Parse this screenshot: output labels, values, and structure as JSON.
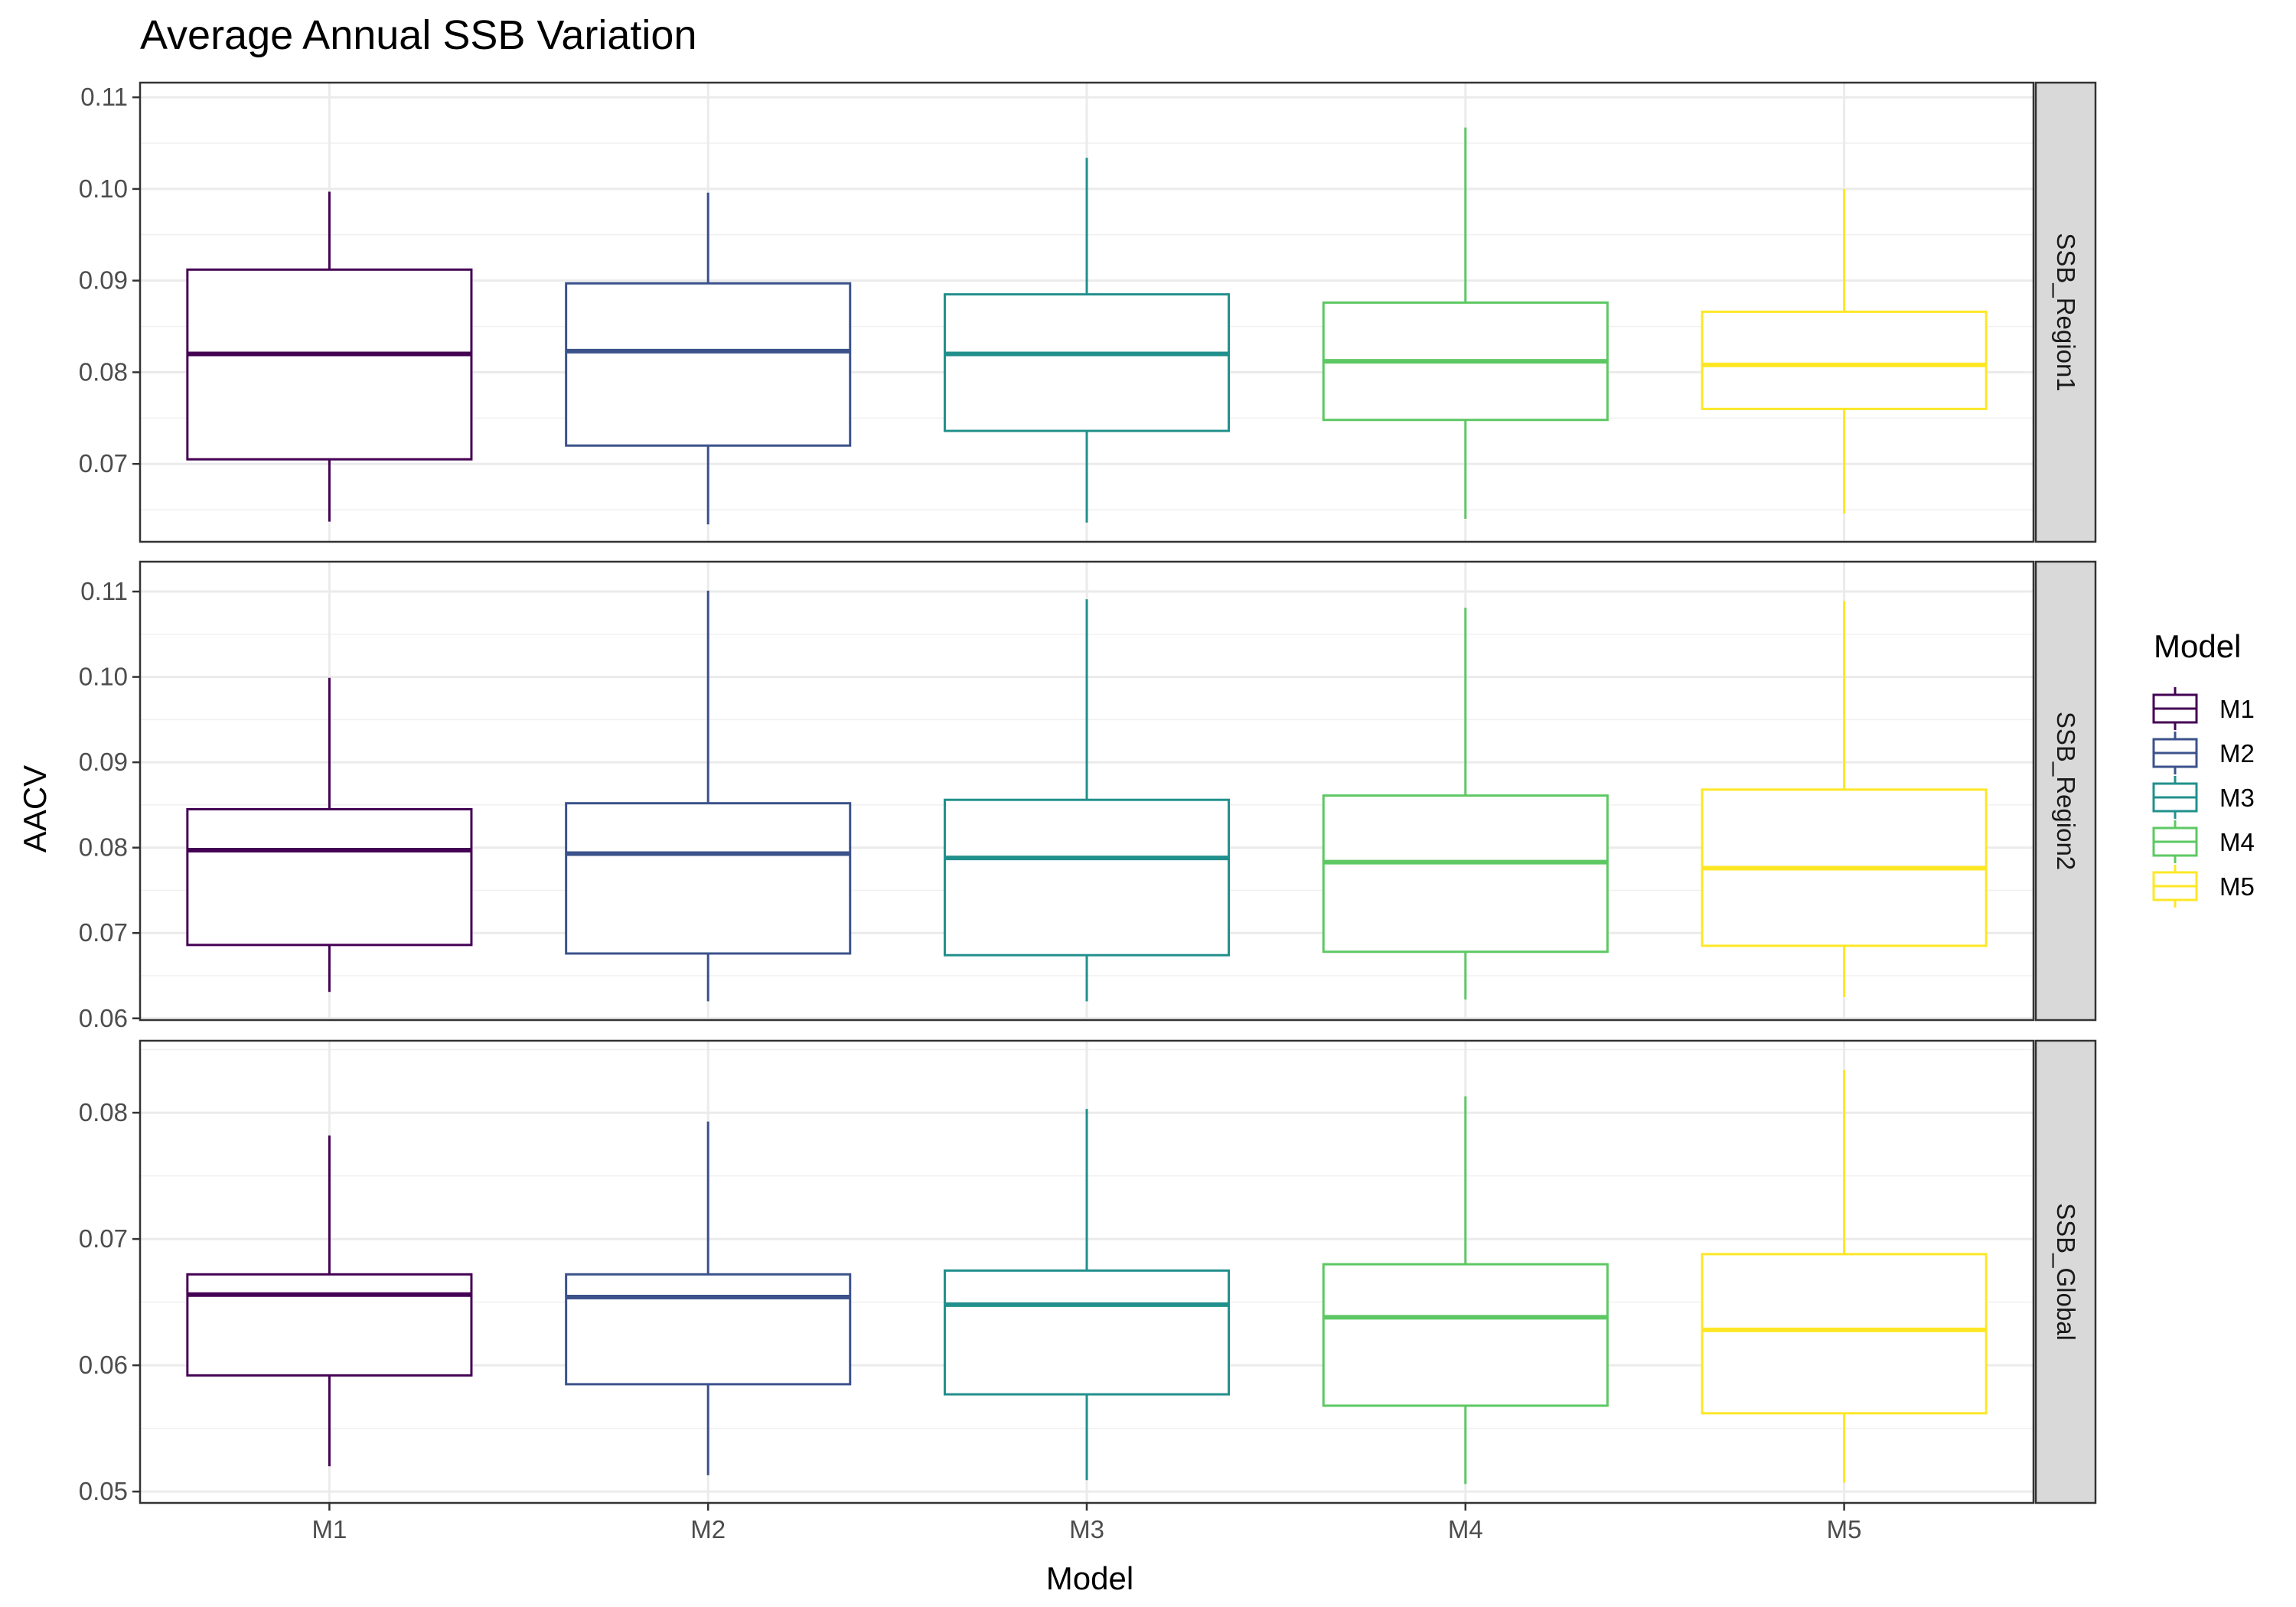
{
  "chart_data": {
    "type": "box",
    "title": "Average Annual SSB Variation",
    "xlabel": "Model",
    "ylabel": "AACV",
    "categories": [
      "M1",
      "M2",
      "M3",
      "M4",
      "M5"
    ],
    "colors": {
      "M1": "#440154",
      "M2": "#3B528B",
      "M3": "#21908C",
      "M4": "#5DC863",
      "M5": "#FDE725"
    },
    "legend": {
      "title": "Model",
      "entries": [
        "M1",
        "M2",
        "M3",
        "M4",
        "M5"
      ],
      "position": "right"
    },
    "grid": true,
    "facets": [
      {
        "label": "SSB_Region1",
        "ylim": [
          0.0615,
          0.1116
        ],
        "yticks": [
          0.07,
          0.08,
          0.09,
          0.1,
          0.11
        ],
        "ytick_labels": [
          "0.07",
          "0.08",
          "0.09",
          "0.10",
          "0.11"
        ],
        "boxes": [
          {
            "model": "M1",
            "min": 0.0637,
            "q1": 0.0705,
            "median": 0.082,
            "q3": 0.0912,
            "max": 0.0997
          },
          {
            "model": "M2",
            "min": 0.0634,
            "q1": 0.072,
            "median": 0.0823,
            "q3": 0.0897,
            "max": 0.0996
          },
          {
            "model": "M3",
            "min": 0.0636,
            "q1": 0.0736,
            "median": 0.082,
            "q3": 0.0885,
            "max": 0.1034
          },
          {
            "model": "M4",
            "min": 0.064,
            "q1": 0.0748,
            "median": 0.0812,
            "q3": 0.0876,
            "max": 0.1067
          },
          {
            "model": "M5",
            "min": 0.0646,
            "q1": 0.076,
            "median": 0.0808,
            "q3": 0.0866,
            "max": 0.1
          }
        ]
      },
      {
        "label": "SSB_Region2",
        "ylim": [
          0.0598,
          0.1135
        ],
        "yticks": [
          0.06,
          0.07,
          0.08,
          0.09,
          0.1,
          0.11
        ],
        "ytick_labels": [
          "0.06",
          "0.07",
          "0.08",
          "0.09",
          "0.10",
          "0.11"
        ],
        "boxes": [
          {
            "model": "M1",
            "min": 0.0631,
            "q1": 0.0686,
            "median": 0.0797,
            "q3": 0.0845,
            "max": 0.0999
          },
          {
            "model": "M2",
            "min": 0.062,
            "q1": 0.0676,
            "median": 0.0793,
            "q3": 0.0852,
            "max": 0.1101
          },
          {
            "model": "M3",
            "min": 0.062,
            "q1": 0.0674,
            "median": 0.0788,
            "q3": 0.0856,
            "max": 0.1091
          },
          {
            "model": "M4",
            "min": 0.0622,
            "q1": 0.0678,
            "median": 0.0783,
            "q3": 0.0861,
            "max": 0.1081
          },
          {
            "model": "M5",
            "min": 0.0625,
            "q1": 0.0685,
            "median": 0.0776,
            "q3": 0.0868,
            "max": 0.1089
          }
        ]
      },
      {
        "label": "SSB_Global",
        "ylim": [
          0.0491,
          0.0857
        ],
        "yticks": [
          0.05,
          0.06,
          0.07,
          0.08
        ],
        "ytick_labels": [
          "0.05",
          "0.06",
          "0.07",
          "0.08"
        ],
        "boxes": [
          {
            "model": "M1",
            "min": 0.052,
            "q1": 0.0592,
            "median": 0.0656,
            "q3": 0.0672,
            "max": 0.0782
          },
          {
            "model": "M2",
            "min": 0.0513,
            "q1": 0.0585,
            "median": 0.0654,
            "q3": 0.0672,
            "max": 0.0793
          },
          {
            "model": "M3",
            "min": 0.0509,
            "q1": 0.0577,
            "median": 0.0648,
            "q3": 0.0675,
            "max": 0.0803
          },
          {
            "model": "M4",
            "min": 0.0506,
            "q1": 0.0568,
            "median": 0.0638,
            "q3": 0.068,
            "max": 0.0813
          },
          {
            "model": "M5",
            "min": 0.0507,
            "q1": 0.0562,
            "median": 0.0628,
            "q3": 0.0688,
            "max": 0.0834
          }
        ]
      }
    ]
  }
}
